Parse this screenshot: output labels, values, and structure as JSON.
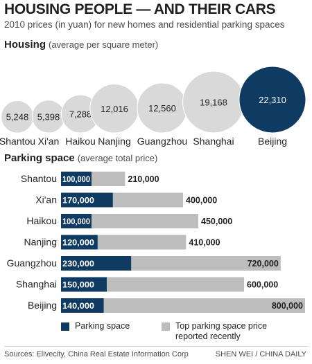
{
  "title": "HOUSING PEOPLE — AND THEIR CARS",
  "subtitle": "2010 prices (in yuan) for new homes and residential parking spaces",
  "colors": {
    "highlight": "#0f3b63",
    "bubble": "#d9d9d9",
    "parking": "#0f3b63",
    "top_price": "#bdbdbd"
  },
  "chart_data": [
    {
      "type": "bubble",
      "title": "Housing",
      "subtitle": "(average per square meter)",
      "categories": [
        "Shantou",
        "Xi'an",
        "Haikou",
        "Nanjing",
        "Guangzhou",
        "Shanghai",
        "Beijing"
      ],
      "values": [
        5248,
        5398,
        7288,
        12016,
        12560,
        19168,
        22310
      ],
      "value_labels": [
        "5,248",
        "5,398",
        "7,288",
        "12,016",
        "12,560",
        "19,168",
        "22,310"
      ],
      "highlight": "Beijing"
    },
    {
      "type": "bar",
      "orientation": "horizontal",
      "stacked": true,
      "title": "Parking space",
      "subtitle": "(average total price)",
      "categories": [
        "Shantou",
        "Xi'an",
        "Haikou",
        "Nanjing",
        "Guangzhou",
        "Shanghai",
        "Beijing"
      ],
      "series": [
        {
          "name": "Parking space",
          "values": [
            100000,
            170000,
            100000,
            120000,
            230000,
            150000,
            140000
          ],
          "labels": [
            "100,000",
            "170,000",
            "100,000",
            "120,000",
            "230,000",
            "150,000",
            "140,000"
          ]
        },
        {
          "name": "Top parking space price reported recently",
          "values": [
            210000,
            400000,
            450000,
            410000,
            720000,
            600000,
            800000
          ],
          "labels": [
            "210,000",
            "400,000",
            "450,000",
            "410,000",
            "720,000",
            "600,000",
            "800,000"
          ]
        }
      ],
      "legend": "bottom"
    }
  ],
  "legend": {
    "parking_label": "Parking space",
    "top_price_line1": "Top parking space price",
    "top_price_line2": "reported recently"
  },
  "footer": {
    "sources": "Sources: Elivecity, China Real Estate Information Corp",
    "credit": "SHEN WEI / CHINA DAILY"
  }
}
